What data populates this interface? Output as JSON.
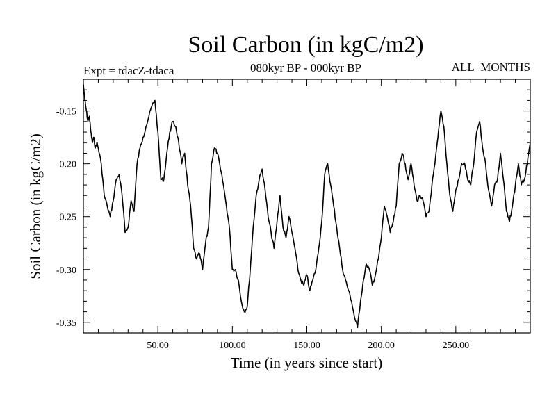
{
  "header": {
    "experiment": "Expt = tdacZ-tdaca",
    "period": "080kyr BP - 000kyr BP",
    "months": "ALL_MONTHS"
  },
  "chart_data": {
    "type": "line",
    "title": "Soil Carbon (in kgC/m2)",
    "xlabel": "Time (in years since start)",
    "ylabel": "Soil Carbon (in kgC/m2)",
    "xlim": [
      0,
      300
    ],
    "ylim": [
      -0.36,
      -0.12
    ],
    "xticks": [
      50,
      100,
      150,
      200,
      250
    ],
    "xtick_labels": [
      "50.00",
      "100.00",
      "150.00",
      "200.00",
      "250.00"
    ],
    "yticks": [
      -0.35,
      -0.3,
      -0.25,
      -0.2,
      -0.15
    ],
    "ytick_labels": [
      "-0.35",
      "-0.30",
      "-0.25",
      "-0.20",
      "-0.15"
    ],
    "series": [
      {
        "name": "Soil Carbon",
        "color": "#000000",
        "x": [
          0,
          1,
          2,
          3,
          4,
          5,
          6,
          7,
          8,
          9,
          10,
          12,
          14,
          16,
          18,
          20,
          22,
          24,
          26,
          28,
          30,
          32,
          34,
          36,
          38,
          40,
          42,
          44,
          46,
          48,
          50,
          52,
          54,
          56,
          58,
          60,
          62,
          64,
          66,
          68,
          70,
          72,
          74,
          76,
          78,
          80,
          82,
          84,
          86,
          88,
          90,
          92,
          94,
          96,
          98,
          100,
          102,
          104,
          106,
          108,
          110,
          112,
          114,
          116,
          118,
          120,
          122,
          124,
          126,
          128,
          130,
          132,
          134,
          136,
          138,
          140,
          142,
          144,
          146,
          148,
          150,
          152,
          154,
          156,
          158,
          160,
          162,
          164,
          166,
          168,
          170,
          172,
          174,
          176,
          178,
          180,
          182,
          184,
          186,
          188,
          190,
          192,
          194,
          196,
          198,
          200,
          202,
          204,
          206,
          208,
          210,
          212,
          214,
          216,
          218,
          220,
          222,
          224,
          226,
          228,
          230,
          232,
          234,
          236,
          238,
          240,
          242,
          244,
          246,
          248,
          250,
          252,
          254,
          256,
          258,
          260,
          262,
          264,
          266,
          268,
          270,
          272,
          274,
          276,
          278,
          280,
          282,
          284,
          286,
          288,
          290,
          292,
          294,
          296,
          298,
          300
        ],
        "values": [
          -0.125,
          -0.14,
          -0.15,
          -0.16,
          -0.155,
          -0.17,
          -0.18,
          -0.175,
          -0.185,
          -0.18,
          -0.185,
          -0.2,
          -0.23,
          -0.24,
          -0.25,
          -0.235,
          -0.215,
          -0.21,
          -0.23,
          -0.265,
          -0.26,
          -0.235,
          -0.245,
          -0.2,
          -0.185,
          -0.175,
          -0.165,
          -0.155,
          -0.145,
          -0.14,
          -0.17,
          -0.215,
          -0.215,
          -0.19,
          -0.17,
          -0.16,
          -0.165,
          -0.18,
          -0.2,
          -0.19,
          -0.22,
          -0.24,
          -0.28,
          -0.29,
          -0.285,
          -0.3,
          -0.275,
          -0.26,
          -0.2,
          -0.185,
          -0.19,
          -0.205,
          -0.22,
          -0.24,
          -0.26,
          -0.3,
          -0.3,
          -0.31,
          -0.33,
          -0.34,
          -0.335,
          -0.3,
          -0.26,
          -0.23,
          -0.215,
          -0.205,
          -0.225,
          -0.25,
          -0.265,
          -0.28,
          -0.255,
          -0.23,
          -0.26,
          -0.27,
          -0.25,
          -0.265,
          -0.28,
          -0.3,
          -0.31,
          -0.315,
          -0.305,
          -0.32,
          -0.31,
          -0.3,
          -0.28,
          -0.255,
          -0.21,
          -0.2,
          -0.22,
          -0.24,
          -0.26,
          -0.28,
          -0.3,
          -0.31,
          -0.32,
          -0.33,
          -0.345,
          -0.355,
          -0.33,
          -0.31,
          -0.295,
          -0.3,
          -0.315,
          -0.305,
          -0.29,
          -0.27,
          -0.24,
          -0.25,
          -0.265,
          -0.255,
          -0.24,
          -0.2,
          -0.19,
          -0.2,
          -0.215,
          -0.2,
          -0.22,
          -0.235,
          -0.23,
          -0.235,
          -0.25,
          -0.245,
          -0.22,
          -0.2,
          -0.175,
          -0.15,
          -0.165,
          -0.2,
          -0.23,
          -0.245,
          -0.225,
          -0.215,
          -0.2,
          -0.2,
          -0.215,
          -0.22,
          -0.2,
          -0.17,
          -0.16,
          -0.185,
          -0.2,
          -0.225,
          -0.24,
          -0.22,
          -0.215,
          -0.19,
          -0.215,
          -0.245,
          -0.255,
          -0.24,
          -0.22,
          -0.2,
          -0.22,
          -0.215,
          -0.2,
          -0.18
        ]
      }
    ]
  }
}
